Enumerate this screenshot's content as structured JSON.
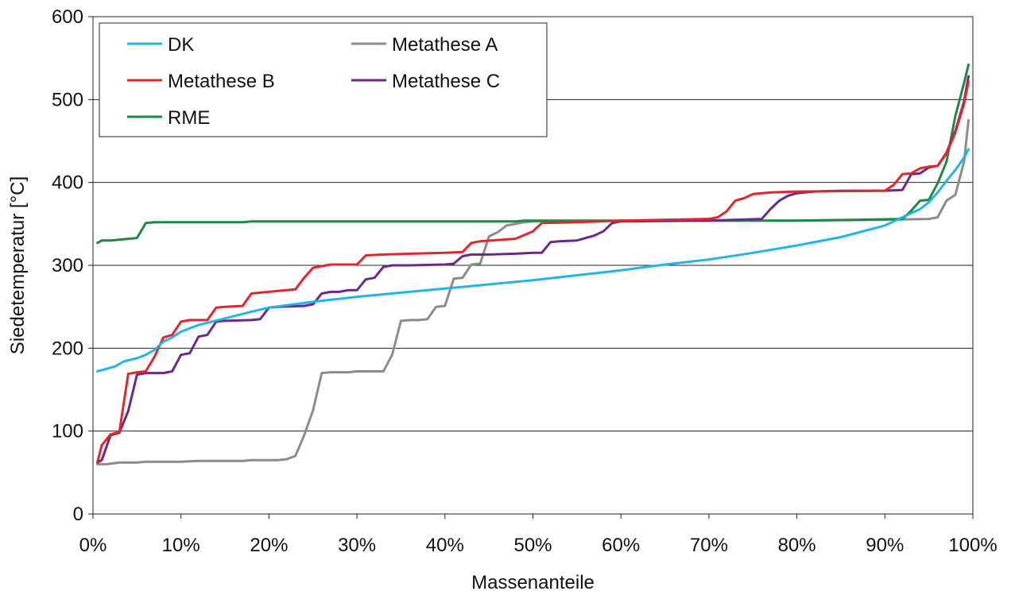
{
  "chart_data": {
    "type": "line",
    "title": "",
    "xlabel": "Massenanteile",
    "ylabel": "Siedetemperatur [°C]",
    "xlim": [
      0,
      100
    ],
    "ylim": [
      0,
      600
    ],
    "x_ticks": [
      "0%",
      "10%",
      "20%",
      "30%",
      "40%",
      "50%",
      "60%",
      "70%",
      "80%",
      "90%",
      "100%"
    ],
    "y_ticks": [
      "0",
      "100",
      "200",
      "300",
      "400",
      "500",
      "600"
    ],
    "grid": "horizontal",
    "legend": {
      "position": "top-left",
      "rows": [
        [
          "DK",
          "Metathese A"
        ],
        [
          "Metathese B",
          "Metathese C"
        ],
        [
          "RME"
        ]
      ]
    },
    "series": [
      {
        "name": "DK",
        "color": "#22b5e6",
        "points": [
          [
            0.5,
            172
          ],
          [
            1.5,
            175
          ],
          [
            2.5,
            178
          ],
          [
            3.5,
            184
          ],
          [
            5,
            188
          ],
          [
            6,
            192
          ],
          [
            7,
            198
          ],
          [
            8,
            208
          ],
          [
            9,
            213
          ],
          [
            10,
            220
          ],
          [
            12,
            228
          ],
          [
            15,
            236
          ],
          [
            18,
            244
          ],
          [
            20,
            249
          ],
          [
            25,
            256
          ],
          [
            30,
            262
          ],
          [
            35,
            267
          ],
          [
            40,
            272
          ],
          [
            45,
            277
          ],
          [
            50,
            282
          ],
          [
            55,
            288
          ],
          [
            60,
            294
          ],
          [
            65,
            301
          ],
          [
            70,
            307
          ],
          [
            75,
            315
          ],
          [
            80,
            324
          ],
          [
            85,
            334
          ],
          [
            90,
            348
          ],
          [
            92,
            358
          ],
          [
            94,
            368
          ],
          [
            95,
            376
          ],
          [
            96,
            388
          ],
          [
            97,
            402
          ],
          [
            98,
            415
          ],
          [
            99,
            430
          ],
          [
            99.5,
            440
          ]
        ]
      },
      {
        "name": "Metathese A",
        "color": "#8c8c8c",
        "points": [
          [
            0.5,
            60
          ],
          [
            1.5,
            60
          ],
          [
            3,
            62
          ],
          [
            5,
            62
          ],
          [
            6,
            63
          ],
          [
            10,
            63
          ],
          [
            12,
            64
          ],
          [
            17,
            64
          ],
          [
            18,
            65
          ],
          [
            21,
            65
          ],
          [
            22,
            66
          ],
          [
            23,
            70
          ],
          [
            24,
            95
          ],
          [
            25,
            125
          ],
          [
            26,
            170
          ],
          [
            27,
            171
          ],
          [
            29,
            171
          ],
          [
            30,
            172
          ],
          [
            33,
            172
          ],
          [
            34,
            192
          ],
          [
            35,
            233
          ],
          [
            36,
            234
          ],
          [
            37,
            234
          ],
          [
            38,
            235
          ],
          [
            39,
            250
          ],
          [
            40,
            251
          ],
          [
            41,
            284
          ],
          [
            42,
            285
          ],
          [
            43,
            301
          ],
          [
            44,
            302
          ],
          [
            45,
            335
          ],
          [
            46,
            340
          ],
          [
            47,
            348
          ],
          [
            48,
            350
          ],
          [
            49,
            352
          ],
          [
            50,
            353
          ],
          [
            55,
            353
          ],
          [
            60,
            354
          ],
          [
            70,
            354
          ],
          [
            80,
            354
          ],
          [
            90,
            355
          ],
          [
            95,
            356
          ],
          [
            96,
            358
          ],
          [
            97,
            378
          ],
          [
            98,
            385
          ],
          [
            99,
            425
          ],
          [
            99.5,
            475
          ]
        ]
      },
      {
        "name": "Metathese B",
        "color": "#e3262b",
        "points": [
          [
            0.5,
            62
          ],
          [
            1,
            83
          ],
          [
            2,
            96
          ],
          [
            3,
            99
          ],
          [
            4,
            169
          ],
          [
            5,
            171
          ],
          [
            6,
            172
          ],
          [
            7,
            190
          ],
          [
            8,
            213
          ],
          [
            9,
            216
          ],
          [
            10,
            232
          ],
          [
            11,
            234
          ],
          [
            13,
            234
          ],
          [
            14,
            249
          ],
          [
            15,
            250
          ],
          [
            17,
            251
          ],
          [
            18,
            266
          ],
          [
            19,
            267
          ],
          [
            20,
            268
          ],
          [
            21,
            269
          ],
          [
            22,
            270
          ],
          [
            23,
            271
          ],
          [
            24,
            285
          ],
          [
            25,
            297
          ],
          [
            27,
            301
          ],
          [
            30,
            301
          ],
          [
            31,
            312
          ],
          [
            33,
            313
          ],
          [
            36,
            314
          ],
          [
            40,
            315
          ],
          [
            42,
            316
          ],
          [
            43,
            327
          ],
          [
            44,
            329
          ],
          [
            48,
            332
          ],
          [
            50,
            341
          ],
          [
            51,
            351
          ],
          [
            55,
            352
          ],
          [
            60,
            354
          ],
          [
            70,
            356
          ],
          [
            71,
            358
          ],
          [
            72,
            365
          ],
          [
            73,
            378
          ],
          [
            74,
            381
          ],
          [
            75,
            386
          ],
          [
            77,
            388
          ],
          [
            80,
            389
          ],
          [
            90,
            390
          ],
          [
            91,
            397
          ],
          [
            92,
            410
          ],
          [
            93,
            411
          ],
          [
            94,
            417
          ],
          [
            95,
            419
          ],
          [
            96,
            420
          ],
          [
            97,
            435
          ],
          [
            98,
            460
          ],
          [
            99,
            495
          ],
          [
            99.5,
            522
          ]
        ]
      },
      {
        "name": "Metathese C",
        "color": "#6a2a8a",
        "points": [
          [
            0.5,
            62
          ],
          [
            1,
            65
          ],
          [
            2,
            95
          ],
          [
            3,
            98
          ],
          [
            4,
            124
          ],
          [
            5,
            168
          ],
          [
            6,
            170
          ],
          [
            8,
            170
          ],
          [
            9,
            172
          ],
          [
            10,
            192
          ],
          [
            11,
            194
          ],
          [
            12,
            214
          ],
          [
            13,
            216
          ],
          [
            14,
            232
          ],
          [
            15,
            233
          ],
          [
            18,
            234
          ],
          [
            19,
            235
          ],
          [
            20,
            249
          ],
          [
            21,
            250
          ],
          [
            24,
            251
          ],
          [
            25,
            253
          ],
          [
            26,
            266
          ],
          [
            27,
            268
          ],
          [
            28,
            268
          ],
          [
            29,
            270
          ],
          [
            30,
            270
          ],
          [
            31,
            283
          ],
          [
            32,
            285
          ],
          [
            33,
            298
          ],
          [
            34,
            300
          ],
          [
            36,
            300
          ],
          [
            40,
            301
          ],
          [
            41,
            302
          ],
          [
            42,
            311
          ],
          [
            43,
            313
          ],
          [
            45,
            313
          ],
          [
            48,
            314
          ],
          [
            50,
            315
          ],
          [
            51,
            315
          ],
          [
            52,
            328
          ],
          [
            53,
            329
          ],
          [
            55,
            330
          ],
          [
            57,
            336
          ],
          [
            58,
            341
          ],
          [
            59,
            351
          ],
          [
            60,
            353
          ],
          [
            70,
            354
          ],
          [
            76,
            356
          ],
          [
            77,
            368
          ],
          [
            78,
            378
          ],
          [
            79,
            384
          ],
          [
            80,
            387
          ],
          [
            82,
            389
          ],
          [
            85,
            390
          ],
          [
            90,
            390
          ],
          [
            92,
            391
          ],
          [
            93,
            410
          ],
          [
            94,
            411
          ],
          [
            95,
            418
          ],
          [
            96,
            420
          ],
          [
            97,
            436
          ],
          [
            98,
            462
          ],
          [
            99,
            498
          ],
          [
            99.5,
            528
          ]
        ]
      },
      {
        "name": "RME",
        "color": "#1d8a44",
        "points": [
          [
            0.5,
            327
          ],
          [
            1,
            330
          ],
          [
            2,
            330
          ],
          [
            3,
            331
          ],
          [
            4,
            332
          ],
          [
            5,
            333
          ],
          [
            6,
            351
          ],
          [
            7,
            352
          ],
          [
            10,
            352
          ],
          [
            17,
            352
          ],
          [
            18,
            353
          ],
          [
            40,
            353
          ],
          [
            48,
            353
          ],
          [
            49,
            354
          ],
          [
            60,
            354
          ],
          [
            80,
            354
          ],
          [
            87,
            355
          ],
          [
            92,
            356
          ],
          [
            93,
            366
          ],
          [
            94,
            378
          ],
          [
            95,
            379
          ],
          [
            96,
            399
          ],
          [
            97,
            425
          ],
          [
            98,
            480
          ],
          [
            99,
            520
          ],
          [
            99.5,
            542
          ]
        ]
      }
    ]
  }
}
